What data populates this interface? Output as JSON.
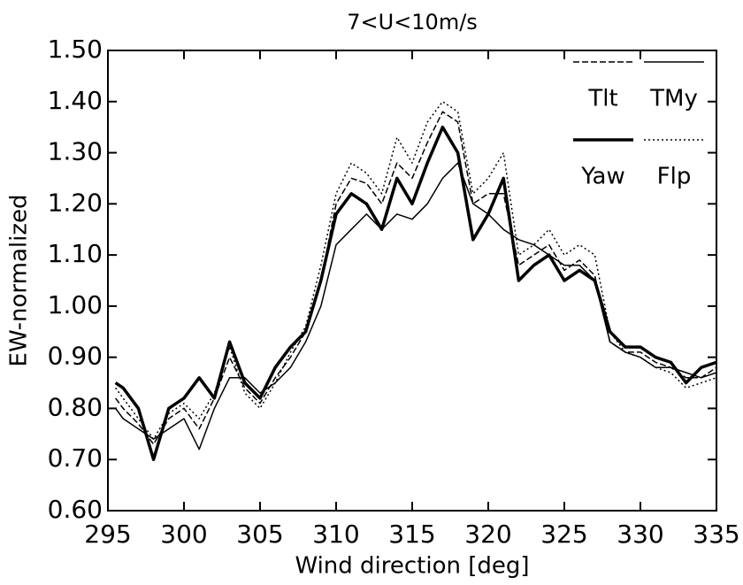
{
  "chart_data": {
    "type": "line",
    "title": "7<U<10m/s",
    "xlabel": "Wind direction [deg]",
    "ylabel": "EW-normalized",
    "x": [
      295.5,
      296,
      297,
      298,
      299,
      300,
      301,
      302,
      303,
      304,
      305,
      306,
      307,
      308,
      309,
      310,
      311,
      312,
      313,
      314,
      315,
      316,
      317,
      318,
      319,
      320,
      321,
      322,
      323,
      324,
      325,
      326,
      327,
      328,
      329,
      330,
      331,
      332,
      333,
      334,
      335
    ],
    "series": [
      {
        "name": "Tlt",
        "color": "#000000",
        "linestyle": "dashed",
        "linewidth": 1.5,
        "values": [
          0.82,
          0.8,
          0.77,
          0.73,
          0.78,
          0.8,
          0.76,
          0.82,
          0.9,
          0.84,
          0.81,
          0.86,
          0.9,
          0.95,
          1.05,
          1.2,
          1.25,
          1.24,
          1.2,
          1.28,
          1.25,
          1.32,
          1.38,
          1.36,
          1.2,
          1.22,
          1.22,
          1.08,
          1.1,
          1.12,
          1.07,
          1.09,
          1.06,
          0.93,
          0.91,
          0.91,
          0.89,
          0.88,
          0.86,
          0.86,
          0.88
        ]
      },
      {
        "name": "TMy",
        "color": "#000000",
        "linestyle": "solid",
        "linewidth": 1.5,
        "values": [
          0.8,
          0.78,
          0.76,
          0.74,
          0.76,
          0.78,
          0.72,
          0.8,
          0.86,
          0.86,
          0.83,
          0.85,
          0.88,
          0.93,
          1.0,
          1.12,
          1.15,
          1.18,
          1.15,
          1.18,
          1.17,
          1.2,
          1.25,
          1.28,
          1.2,
          1.18,
          1.15,
          1.13,
          1.12,
          1.1,
          1.08,
          1.08,
          1.05,
          0.93,
          0.91,
          0.9,
          0.88,
          0.88,
          0.87,
          0.86,
          0.87
        ]
      },
      {
        "name": "Yaw",
        "color": "#000000",
        "linestyle": "solid",
        "linewidth": 3.5,
        "values": [
          0.85,
          0.84,
          0.8,
          0.7,
          0.8,
          0.82,
          0.86,
          0.82,
          0.93,
          0.85,
          0.82,
          0.88,
          0.92,
          0.95,
          1.05,
          1.18,
          1.22,
          1.2,
          1.15,
          1.25,
          1.2,
          1.28,
          1.35,
          1.3,
          1.13,
          1.18,
          1.25,
          1.05,
          1.08,
          1.1,
          1.05,
          1.07,
          1.05,
          0.95,
          0.92,
          0.92,
          0.9,
          0.89,
          0.85,
          0.88,
          0.89
        ]
      },
      {
        "name": "Flp",
        "color": "#000000",
        "linestyle": "dotted",
        "linewidth": 1.5,
        "values": [
          0.84,
          0.82,
          0.78,
          0.74,
          0.79,
          0.81,
          0.78,
          0.83,
          0.92,
          0.83,
          0.8,
          0.85,
          0.91,
          0.96,
          1.08,
          1.22,
          1.28,
          1.26,
          1.22,
          1.33,
          1.28,
          1.36,
          1.4,
          1.38,
          1.22,
          1.25,
          1.3,
          1.1,
          1.12,
          1.15,
          1.1,
          1.12,
          1.1,
          0.95,
          0.91,
          0.9,
          0.88,
          0.87,
          0.84,
          0.85,
          0.86
        ]
      }
    ],
    "xlim": [
      295,
      335
    ],
    "xticks": [
      295,
      300,
      305,
      310,
      315,
      320,
      325,
      330,
      335
    ],
    "ylim": [
      0.6,
      1.5
    ],
    "yticks": [
      {
        "value": 0.6,
        "label": "0.60"
      },
      {
        "value": 0.7,
        "label": "0.70"
      },
      {
        "value": 0.8,
        "label": "0.80"
      },
      {
        "value": 0.9,
        "label": "0.90"
      },
      {
        "value": 1.0,
        "label": "1.00"
      },
      {
        "value": 1.1,
        "label": "1.10"
      },
      {
        "value": 1.2,
        "label": "1.20"
      },
      {
        "value": 1.3,
        "label": "1.30"
      },
      {
        "value": 1.4,
        "label": "1.40"
      },
      {
        "value": 1.5,
        "label": "1.50"
      }
    ],
    "grid": false,
    "legend": "upper right"
  }
}
